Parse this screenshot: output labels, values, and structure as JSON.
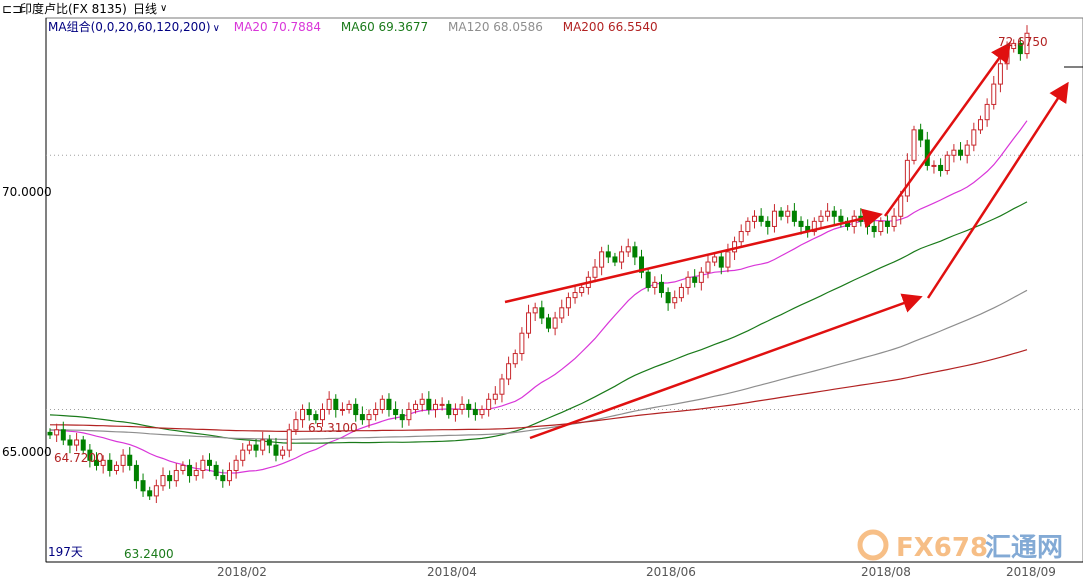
{
  "header": {
    "instrument": "印度卢比(FX 8135)",
    "period": "日线",
    "period_arrow": "chevron-down-icon"
  },
  "legend": {
    "ma_group": "MA组合(0,0,20,60,120,200)",
    "ma20": "MA20 70.7884",
    "ma60": "MA60 69.3677",
    "ma120": "MA120 68.0586",
    "ma200": "MA200 66.5540"
  },
  "colors": {
    "up": "#c8282d",
    "down": "#008000",
    "ma20": "#d936d9",
    "ma60": "#1a7a1a",
    "ma120": "#8e8e8e",
    "ma200": "#b22222",
    "arrow": "#e01010",
    "grid": "#a0a0a0",
    "logo_orange": "#f08a24",
    "logo_blue": "#1f66b4"
  },
  "chart_data": {
    "type": "candlestick",
    "title": "",
    "y_ticks": [
      "70.0000",
      "65.0000"
    ],
    "y_tick_values": [
      70.0,
      65.0
    ],
    "x_ticks": [
      "2018/02",
      "2018/04",
      "2018/06",
      "2018/08",
      "2018/09"
    ],
    "ylim": [
      62.0,
      72.7
    ],
    "days_label": "197天",
    "annotations": {
      "high": "72.6750",
      "low": "63.2400",
      "peak_feb": "65.3100",
      "start": "64.7200"
    },
    "grid": "dotted horizontal",
    "closes": [
      64.5,
      64.6,
      64.4,
      64.3,
      64.4,
      64.2,
      64.0,
      63.9,
      64.0,
      63.8,
      63.9,
      64.1,
      63.9,
      63.6,
      63.4,
      63.3,
      63.5,
      63.7,
      63.6,
      63.8,
      63.9,
      63.7,
      63.8,
      64.0,
      63.9,
      63.7,
      63.6,
      63.8,
      64.0,
      64.2,
      64.3,
      64.2,
      64.4,
      64.3,
      64.1,
      64.2,
      64.6,
      64.8,
      65.0,
      64.9,
      64.8,
      65.0,
      65.2,
      65.0,
      65.0,
      65.1,
      64.9,
      64.8,
      64.9,
      65.0,
      65.2,
      65.0,
      64.9,
      64.8,
      65.0,
      65.1,
      65.2,
      65.0,
      65.1,
      65.1,
      64.9,
      65.0,
      65.1,
      65.0,
      64.9,
      65.0,
      65.2,
      65.3,
      65.6,
      65.9,
      66.1,
      66.5,
      66.9,
      67.0,
      66.8,
      66.6,
      66.8,
      67.0,
      67.2,
      67.3,
      67.4,
      67.6,
      67.8,
      68.1,
      68.0,
      67.9,
      68.1,
      68.2,
      68.0,
      67.7,
      67.4,
      67.5,
      67.3,
      67.1,
      67.2,
      67.4,
      67.6,
      67.5,
      67.7,
      67.9,
      68.0,
      67.8,
      68.1,
      68.3,
      68.5,
      68.7,
      68.8,
      68.7,
      68.6,
      68.9,
      68.8,
      68.9,
      68.7,
      68.6,
      68.5,
      68.7,
      68.8,
      68.9,
      68.8,
      68.7,
      68.6,
      68.8,
      68.7,
      68.6,
      68.5,
      68.7,
      68.6,
      68.8,
      69.2,
      69.9,
      70.5,
      70.3,
      69.8,
      69.8,
      69.7,
      70.0,
      70.1,
      70.0,
      70.2,
      70.5,
      70.7,
      71.0,
      71.4,
      71.8,
      72.1,
      72.2,
      72.0,
      72.4
    ]
  },
  "watermark": {
    "brand": "FX678",
    "cn": "汇通网"
  }
}
